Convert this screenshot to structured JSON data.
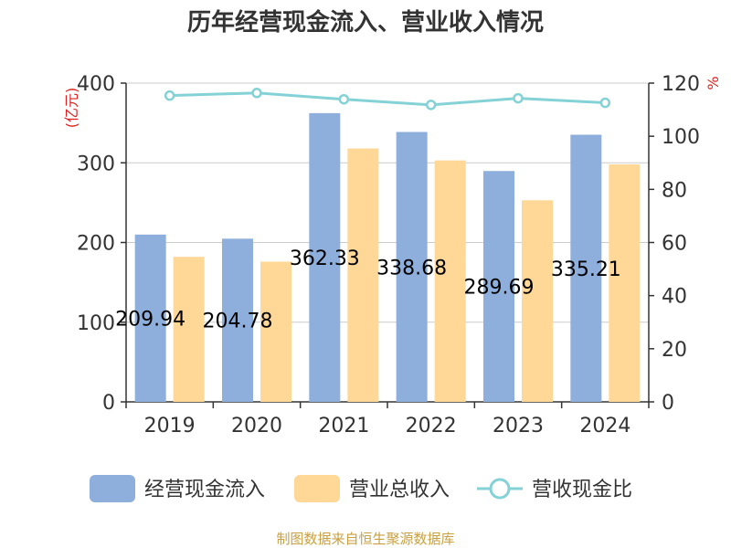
{
  "title": "历年经营现金流入、营业收入情况",
  "source": "制图数据来自恒生聚源数据库",
  "chart_data": {
    "type": "bar",
    "categories": [
      "2019",
      "2020",
      "2021",
      "2022",
      "2023",
      "2024"
    ],
    "left_axis": {
      "unit": "(亿元)",
      "ylim": [
        0,
        400
      ],
      "ticks": [
        "0",
        "100",
        "200",
        "300",
        "400"
      ]
    },
    "right_axis": {
      "unit": "%",
      "ylim": [
        0,
        120
      ],
      "ticks": [
        "0",
        "20",
        "40",
        "60",
        "80",
        "100",
        "120"
      ]
    },
    "series": [
      {
        "name": "经营现金流入",
        "type": "bar",
        "axis": "left",
        "color": "#8eaedb",
        "values": [
          209.94,
          204.78,
          362.33,
          338.68,
          289.69,
          335.21
        ],
        "labels": [
          "209.94",
          "204.78",
          "362.33",
          "338.68",
          "289.69",
          "335.21"
        ]
      },
      {
        "name": "营业总收入",
        "type": "bar",
        "axis": "left",
        "color": "#ffd898",
        "values": [
          182,
          176,
          318,
          303,
          253,
          298
        ]
      },
      {
        "name": "营收现金比",
        "type": "line",
        "axis": "right",
        "color": "#84d2d6",
        "values": [
          115.3,
          116.3,
          113.9,
          111.8,
          114.3,
          112.6
        ]
      }
    ],
    "grid": true,
    "legend_position": "bottom"
  }
}
